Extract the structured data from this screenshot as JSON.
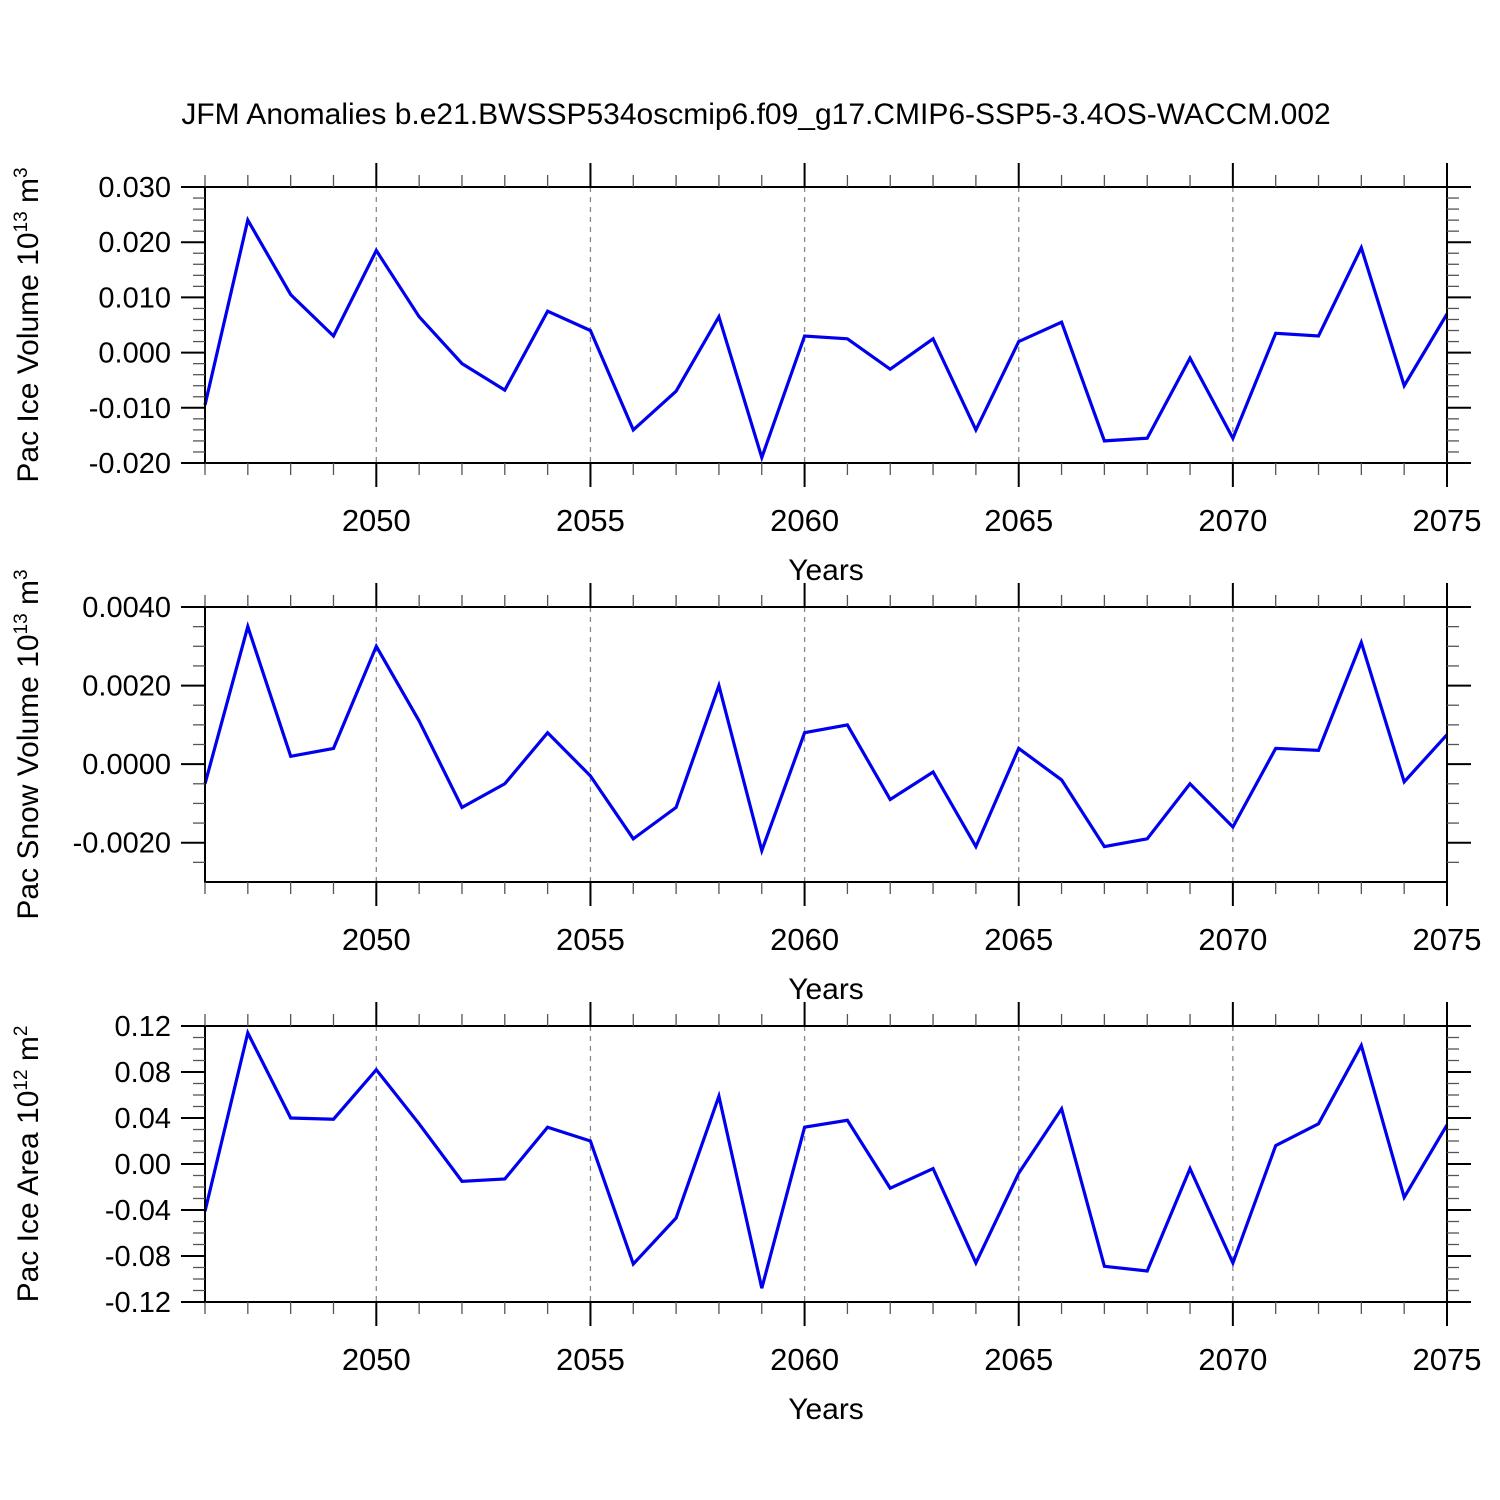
{
  "title": "JFM Anomalies b.e21.BWSSP534oscmip6.f09_g17.CMIP6-SSP5-3.4OS-WACCM.002",
  "colors": {
    "line": "#0000EE",
    "grid": "#888888",
    "axis": "#000000",
    "minor_tick": "#555555",
    "background": "#ffffff"
  },
  "axis_x": {
    "label": "Years",
    "start_year": 2046,
    "end_year": 2075,
    "tick_label_years": [
      2050,
      2055,
      2060,
      2065,
      2070,
      2075
    ],
    "grid_years": [
      2050,
      2055,
      2060,
      2065,
      2070
    ],
    "minor_tick_step": 1
  },
  "chart_data": [
    {
      "type": "line",
      "title": "JFM Anomalies b.e21.BWSSP534oscmip6.f09_g17.CMIP6-SSP5-3.4OS-WACCM.002",
      "xlabel": "Years",
      "ylabel": "Pac Ice Volume 10^13 m^3",
      "ylabel_parts": [
        {
          "t": "Pac Ice Volume 10"
        },
        {
          "t": "13",
          "sup": true
        },
        {
          "t": " m"
        },
        {
          "t": "3",
          "sup": true
        }
      ],
      "ylim": [
        -0.02,
        0.03
      ],
      "y_minor_step": 0.002,
      "yticks": [
        {
          "v": 0.03,
          "label": "0.030"
        },
        {
          "v": 0.02,
          "label": "0.020"
        },
        {
          "v": 0.01,
          "label": "0.010"
        },
        {
          "v": 0.0,
          "label": "0.000"
        },
        {
          "v": -0.01,
          "label": "-0.010"
        },
        {
          "v": -0.02,
          "label": "-0.020"
        }
      ],
      "x": [
        2046,
        2047,
        2048,
        2049,
        2050,
        2051,
        2052,
        2053,
        2054,
        2055,
        2056,
        2057,
        2058,
        2059,
        2060,
        2061,
        2062,
        2063,
        2064,
        2065,
        2066,
        2067,
        2068,
        2069,
        2070,
        2071,
        2072,
        2073,
        2074,
        2075
      ],
      "values": [
        -0.0095,
        0.024,
        0.0105,
        0.003,
        0.0185,
        0.0065,
        -0.002,
        -0.0068,
        0.0075,
        0.004,
        -0.014,
        -0.007,
        0.0065,
        -0.019,
        0.003,
        0.0025,
        -0.003,
        0.0025,
        -0.014,
        0.002,
        0.0055,
        -0.016,
        -0.0155,
        -0.001,
        -0.0155,
        0.0035,
        0.003,
        0.019,
        -0.006,
        0.007
      ]
    },
    {
      "type": "line",
      "xlabel": "Years",
      "ylabel": "Pac Snow Volume 10^13 m^3",
      "ylabel_parts": [
        {
          "t": "Pac Snow Volume 10"
        },
        {
          "t": "13",
          "sup": true
        },
        {
          "t": " m"
        },
        {
          "t": "3",
          "sup": true
        }
      ],
      "ylim": [
        -0.003,
        0.004
      ],
      "y_minor_step": 0.0005,
      "yticks": [
        {
          "v": 0.004,
          "label": "0.0040"
        },
        {
          "v": 0.002,
          "label": "0.0020"
        },
        {
          "v": 0.0,
          "label": "0.0000"
        },
        {
          "v": -0.002,
          "label": "-0.0020"
        }
      ],
      "x": [
        2046,
        2047,
        2048,
        2049,
        2050,
        2051,
        2052,
        2053,
        2054,
        2055,
        2056,
        2057,
        2058,
        2059,
        2060,
        2061,
        2062,
        2063,
        2064,
        2065,
        2066,
        2067,
        2068,
        2069,
        2070,
        2071,
        2072,
        2073,
        2074,
        2075
      ],
      "values": [
        -0.0005,
        0.0035,
        0.0002,
        0.0004,
        0.003,
        0.0011,
        -0.0011,
        -0.0005,
        0.0008,
        -0.0003,
        -0.0019,
        -0.0011,
        0.002,
        -0.0022,
        0.0008,
        0.001,
        -0.0009,
        -0.0002,
        -0.0021,
        0.0004,
        -0.0004,
        -0.0021,
        -0.0019,
        -0.0005,
        -0.0016,
        0.0004,
        0.00035,
        0.0031,
        -0.00045,
        0.00075
      ]
    },
    {
      "type": "line",
      "xlabel": "Years",
      "ylabel": "Pac Ice Area 10^12 m^2",
      "ylabel_parts": [
        {
          "t": "Pac Ice Area 10"
        },
        {
          "t": "12",
          "sup": true
        },
        {
          "t": " m"
        },
        {
          "t": "2",
          "sup": true
        }
      ],
      "ylim": [
        -0.12,
        0.12
      ],
      "y_minor_step": 0.01,
      "yticks": [
        {
          "v": 0.12,
          "label": "0.12"
        },
        {
          "v": 0.08,
          "label": "0.08"
        },
        {
          "v": 0.04,
          "label": "0.04"
        },
        {
          "v": 0.0,
          "label": "0.00"
        },
        {
          "v": -0.04,
          "label": "-0.04"
        },
        {
          "v": -0.08,
          "label": "-0.08"
        },
        {
          "v": -0.12,
          "label": "-0.12"
        }
      ],
      "x": [
        2046,
        2047,
        2048,
        2049,
        2050,
        2051,
        2052,
        2053,
        2054,
        2055,
        2056,
        2057,
        2058,
        2059,
        2060,
        2061,
        2062,
        2063,
        2064,
        2065,
        2066,
        2067,
        2068,
        2069,
        2070,
        2071,
        2072,
        2073,
        2074,
        2075
      ],
      "values": [
        -0.041,
        0.114,
        0.04,
        0.039,
        0.082,
        0.035,
        -0.015,
        -0.013,
        0.032,
        0.02,
        -0.087,
        -0.047,
        0.059,
        -0.108,
        0.032,
        0.038,
        -0.021,
        -0.004,
        -0.086,
        -0.008,
        0.048,
        -0.089,
        -0.093,
        -0.004,
        -0.086,
        0.016,
        0.035,
        0.103,
        -0.029,
        0.034
      ]
    }
  ]
}
